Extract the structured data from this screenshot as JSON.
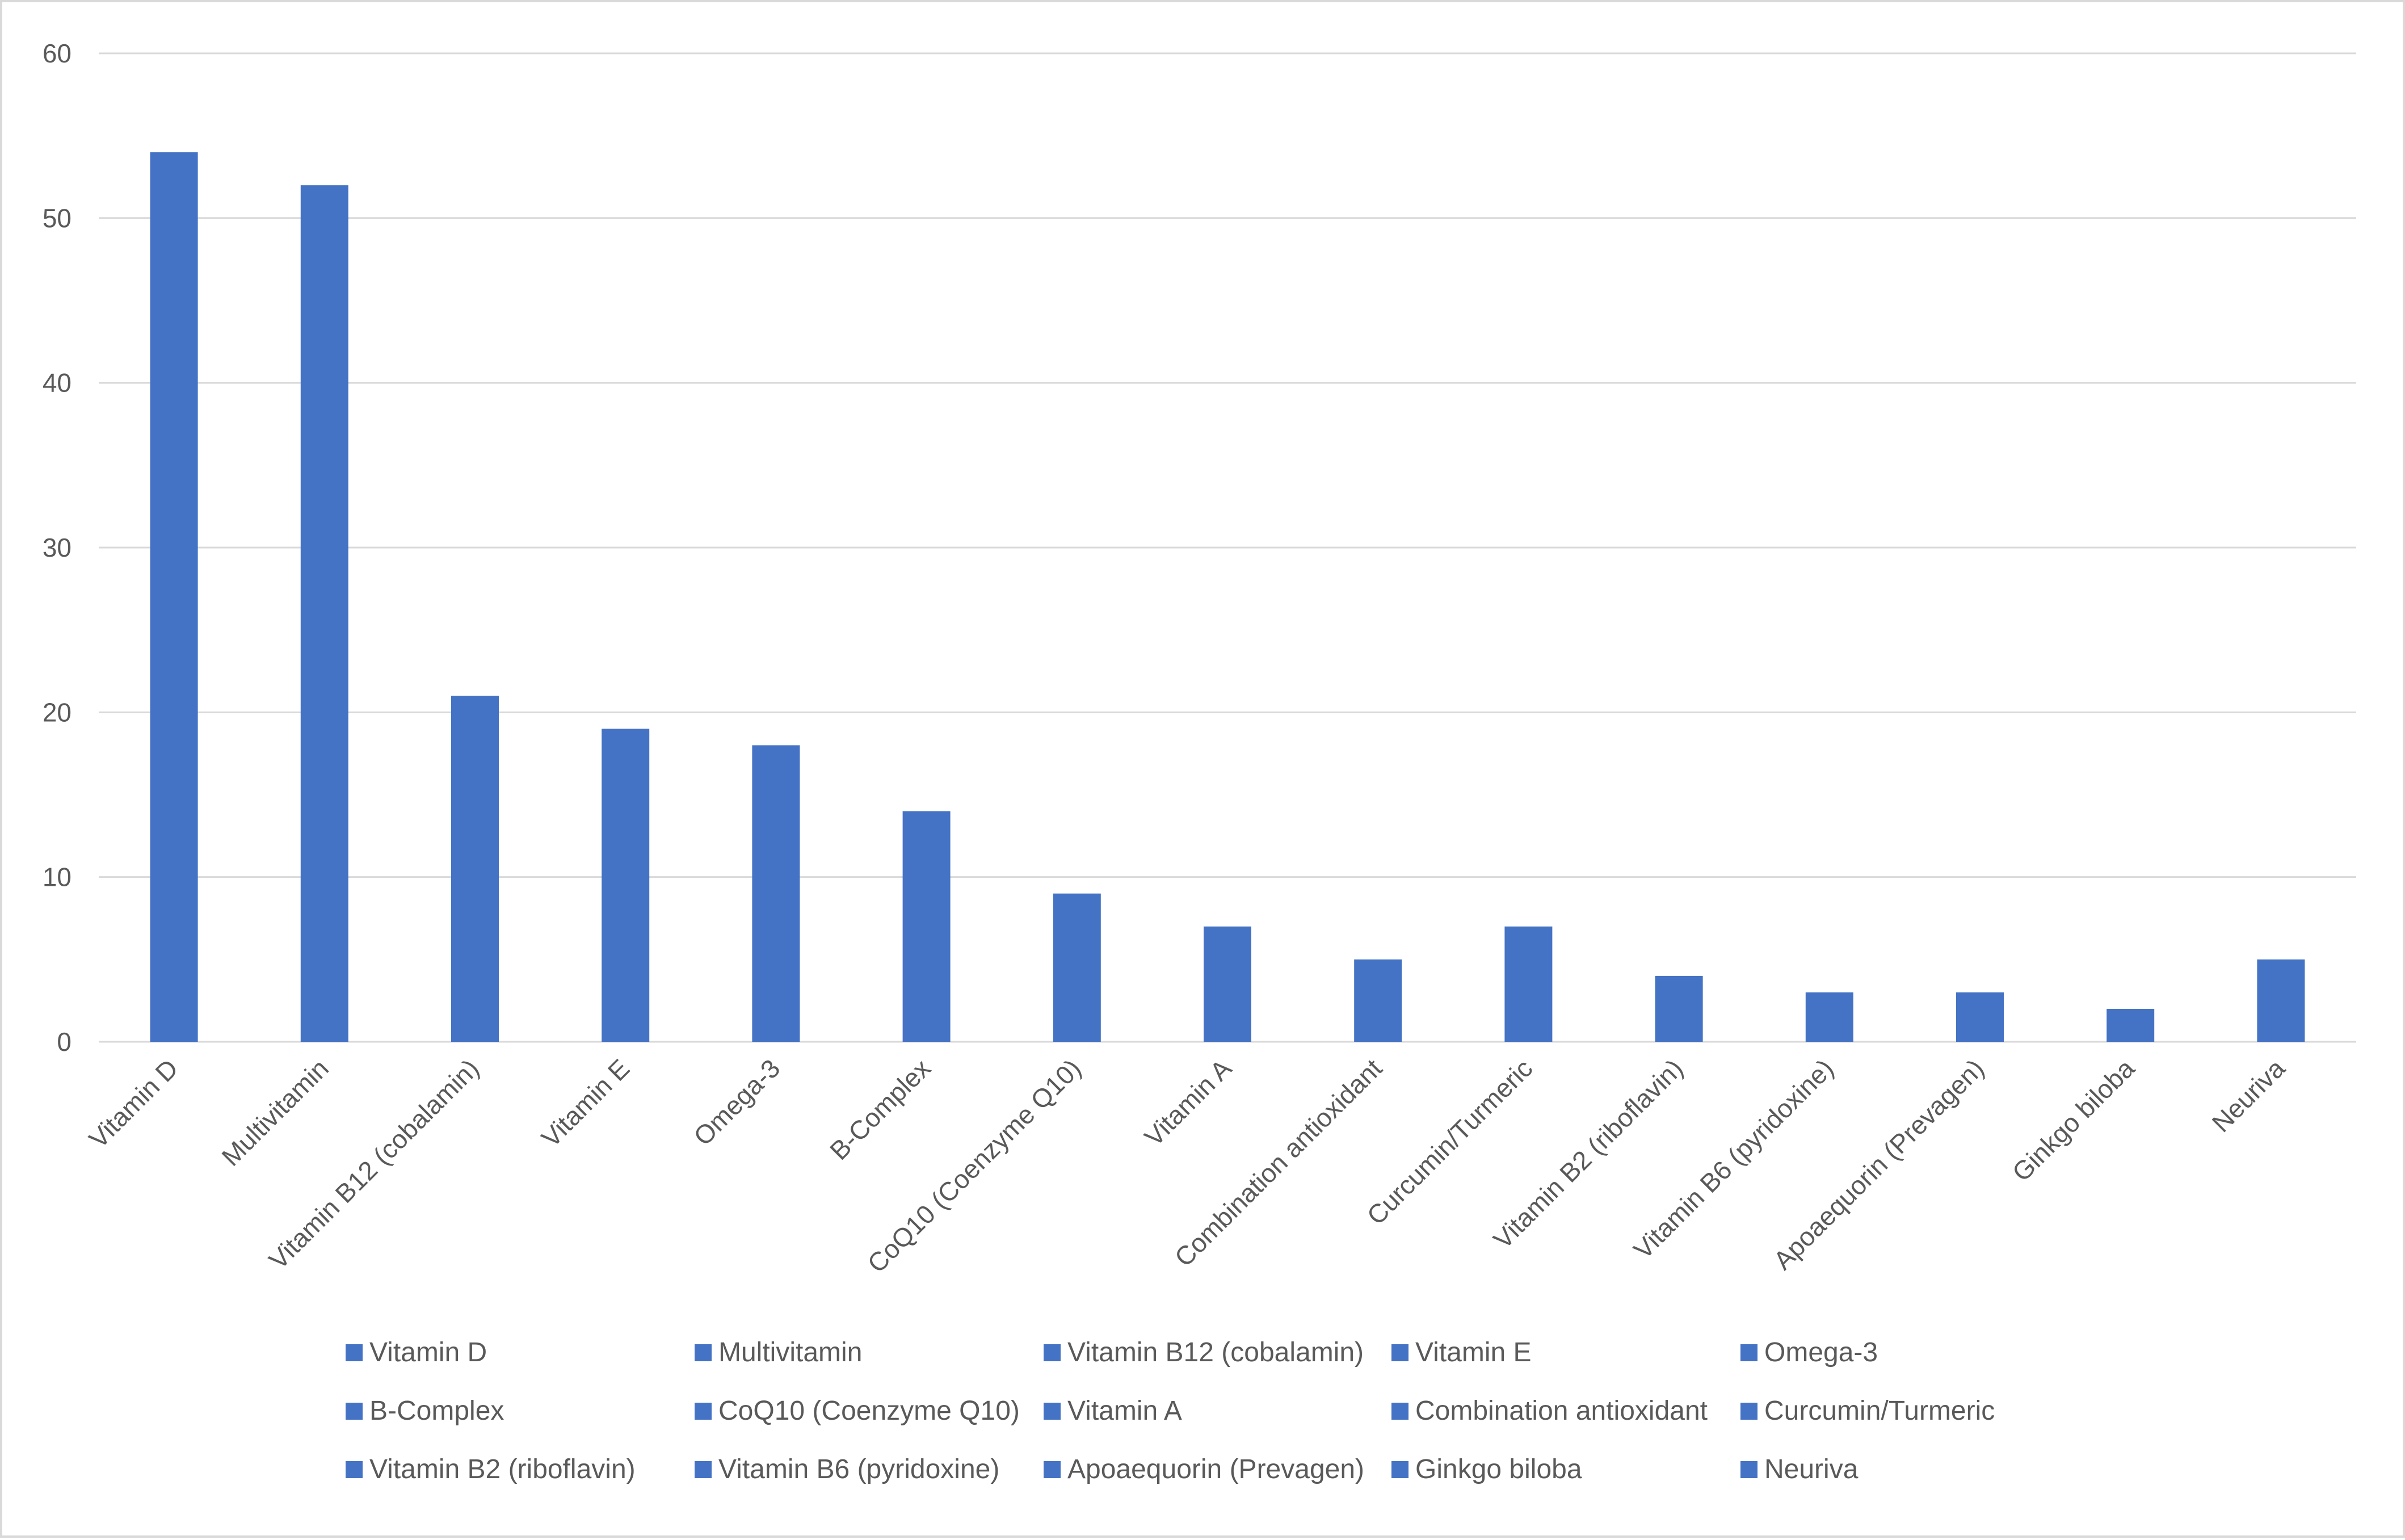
{
  "chart_data": {
    "type": "bar",
    "categories": [
      "Vitamin D",
      "Multivitamin",
      "Vitamin B12 (cobalamin)",
      "Vitamin E",
      "Omega-3",
      "B-Complex",
      "CoQ10 (Coenzyme Q10)",
      "Vitamin A",
      "Combination antioxidant",
      "Curcumin/Turmeric",
      "Vitamin B2 (riboflavin)",
      "Vitamin B6 (pyridoxine)",
      "Apoaequorin (Prevagen)",
      "Ginkgo biloba",
      "Neuriva"
    ],
    "values": [
      54,
      52,
      21,
      19,
      18,
      14,
      9,
      7,
      5,
      7,
      4,
      3,
      3,
      2,
      5
    ],
    "title": "",
    "xlabel": "",
    "ylabel": "",
    "ylim": [
      0,
      60
    ],
    "yticks": [
      "0",
      "10",
      "20",
      "30",
      "40",
      "50",
      "60"
    ],
    "grid": true,
    "legend_position": "bottom",
    "bar_color": "#4472c4",
    "grid_color": "#d9d9d9",
    "text_color": "#595959"
  }
}
